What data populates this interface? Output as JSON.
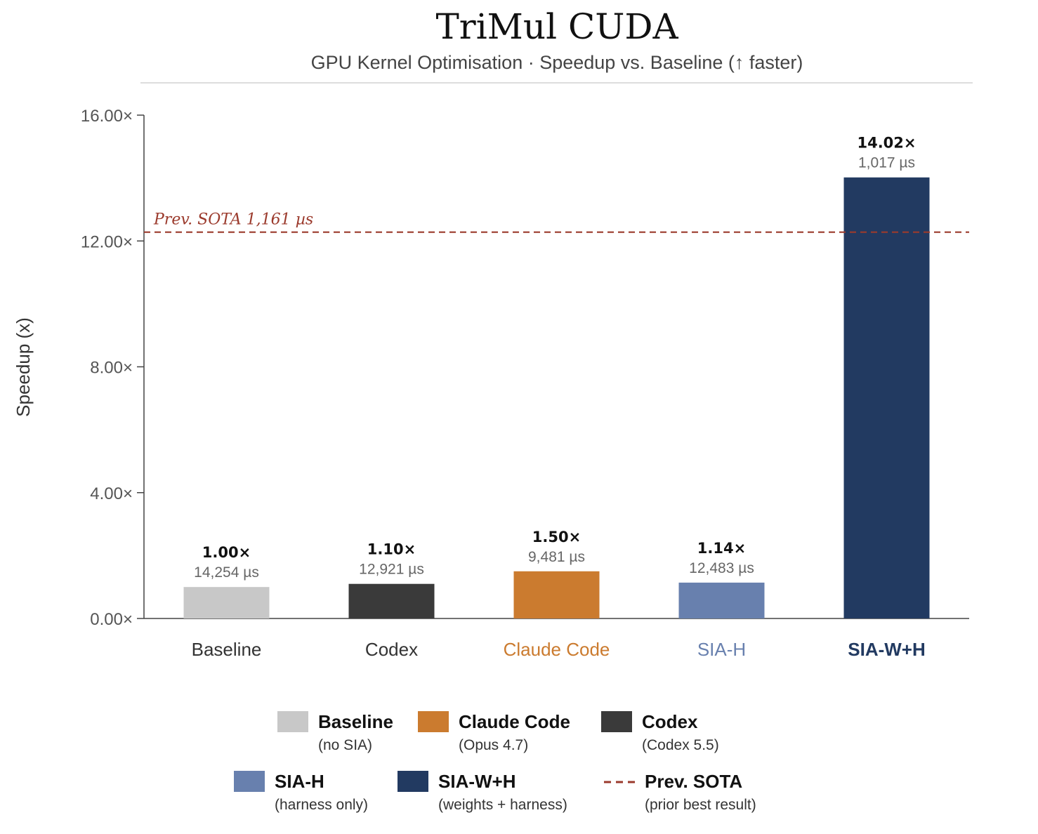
{
  "chart_data": {
    "type": "bar",
    "title": "TriMul CUDA",
    "subtitle": "GPU Kernel Optimisation · Speedup vs. Baseline (↑ faster)",
    "ylabel": "Speedup (x)",
    "ylim": [
      0,
      16
    ],
    "yticks": [
      0,
      4,
      8,
      12,
      16
    ],
    "ytick_labels": [
      "0.00×",
      "4.00×",
      "8.00×",
      "12.00×",
      "16.00×"
    ],
    "grid": false,
    "categories": [
      "Baseline",
      "Codex",
      "Claude Code",
      "SIA-H",
      "SIA-W+H"
    ],
    "values": [
      1.0,
      1.1,
      1.5,
      1.14,
      14.02
    ],
    "value_labels": [
      "1.00×",
      "1.10×",
      "1.50×",
      "1.14×",
      "14.02×"
    ],
    "time_labels": [
      "14,254 µs",
      "12,921 µs",
      "9,481 µs",
      "12,483 µs",
      "1,017 µs"
    ],
    "colors": [
      "#c8c8c8",
      "#3a3a3a",
      "#cb7b2f",
      "#6880ae",
      "#223a61"
    ],
    "category_colors": [
      "#333333",
      "#333333",
      "#cb7b2f",
      "#6880ae",
      "#223a61"
    ],
    "reference_line": {
      "value": 12.28,
      "label": "Prev. SOTA  1,161 µs",
      "color": "#9b3a2c",
      "style": "dashed"
    },
    "legend": {
      "position": "bottom",
      "items": [
        {
          "name": "Baseline",
          "sub": "(no SIA)",
          "color": "#c8c8c8",
          "kind": "box"
        },
        {
          "name": "Claude Code",
          "sub": "(Opus 4.7)",
          "color": "#cb7b2f",
          "kind": "box"
        },
        {
          "name": "Codex",
          "sub": "(Codex 5.5)",
          "color": "#3a3a3a",
          "kind": "box"
        },
        {
          "name": "SIA-H",
          "sub": "(harness only)",
          "color": "#6880ae",
          "kind": "box"
        },
        {
          "name": "SIA-W+H",
          "sub": "(weights + harness)",
          "color": "#223a61",
          "kind": "box"
        },
        {
          "name": "Prev. SOTA",
          "sub": "(prior best result)",
          "color": "#9b3a2c",
          "kind": "dash"
        }
      ]
    }
  }
}
